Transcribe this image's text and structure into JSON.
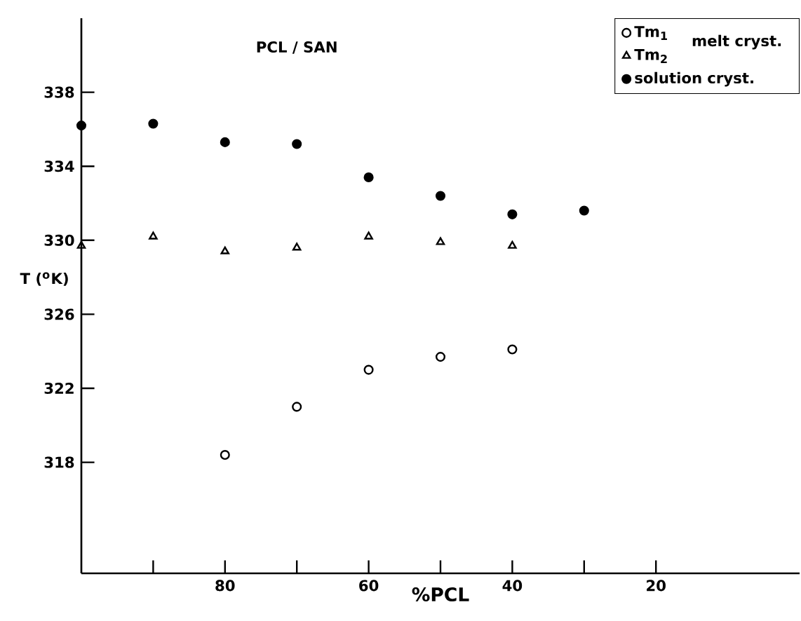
{
  "chart_data": {
    "type": "scatter",
    "title": "PCL / SAN",
    "xlabel": "%PCL",
    "ylabel": "T ($^{o}$K)",
    "xlim": [
      100,
      0
    ],
    "ylim": [
      312,
      342
    ],
    "xticks": [
      {
        "value": 90,
        "label": null
      },
      80,
      {
        "value": 70,
        "label": null
      },
      60,
      {
        "value": 50,
        "label": null
      },
      40,
      {
        "value": 30,
        "label": null
      },
      20
    ],
    "yticks": [
      318,
      322,
      326,
      330,
      334,
      338
    ],
    "grid": false,
    "legend": "top right",
    "annotations": [
      "melt cryst."
    ],
    "series": [
      {
        "name": "Tm$_{1}$",
        "color": "#000000",
        "marker": "circle-open",
        "x": [
          80,
          70,
          60,
          50,
          40
        ],
        "values": [
          318.4,
          321.0,
          323.0,
          323.7,
          324.1
        ]
      },
      {
        "name": "Tm$_{2}$",
        "color": "#000000",
        "marker": "triangle-open",
        "x": [
          100,
          90,
          80,
          70,
          60,
          50,
          40
        ],
        "values": [
          329.7,
          330.2,
          329.4,
          329.6,
          330.2,
          329.9,
          329.7
        ]
      },
      {
        "name": "solution cryst.",
        "color": "#000000",
        "marker": "circle",
        "x": [
          100,
          90,
          80,
          70,
          60,
          50,
          40,
          30
        ],
        "values": [
          336.2,
          336.3,
          335.3,
          335.2,
          333.4,
          332.4,
          331.4,
          331.6
        ]
      }
    ]
  }
}
